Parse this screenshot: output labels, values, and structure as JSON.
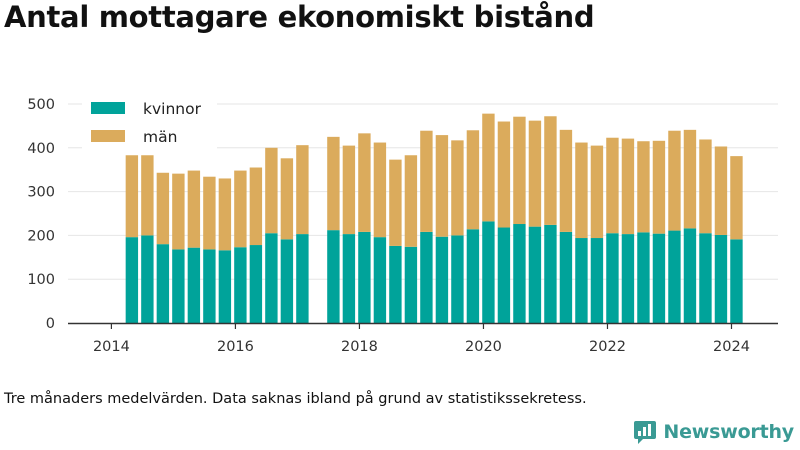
{
  "title": "Antal mottagare ekonomiskt bistånd",
  "note": "Tre månaders medelvärden. Data saknas ibland på grund av statistikssekretess.",
  "brand": "Newsworthy",
  "colors": {
    "kvinnor": "#00a39a",
    "man": "#dbab5c",
    "axis": "#333333",
    "grid": "#e6e6e6",
    "brand": "#3a9a94"
  },
  "chart_data": {
    "type": "bar",
    "stacked": true,
    "legend_position": "top-left",
    "grid": true,
    "ylim": [
      0,
      500
    ],
    "yticks": [
      0,
      100,
      200,
      300,
      400,
      500
    ],
    "xticks": [
      "2014",
      "2016",
      "2018",
      "2020",
      "2022",
      "2024"
    ],
    "xlim": [
      2013.3,
      2024.75
    ],
    "series": [
      {
        "name": "kvinnor",
        "values": [
          196,
          200,
          180,
          168,
          172,
          168,
          166,
          173,
          178,
          205,
          191,
          203,
          212,
          203,
          208,
          196,
          176,
          174,
          208,
          197,
          200,
          214,
          232,
          218,
          226,
          220,
          224,
          208,
          194,
          194,
          205,
          203,
          207,
          204,
          211,
          216,
          205,
          201,
          191
        ]
      },
      {
        "name": "män",
        "values": [
          187,
          183,
          163,
          173,
          176,
          166,
          164,
          175,
          177,
          195,
          185,
          203,
          213,
          202,
          225,
          216,
          197,
          209,
          231,
          232,
          217,
          226,
          246,
          242,
          245,
          242,
          248,
          233,
          218,
          211,
          218,
          218,
          208,
          212,
          228,
          225,
          214,
          202,
          190
        ]
      }
    ],
    "x": [
      2014.33,
      2014.58,
      2014.83,
      2015.08,
      2015.33,
      2015.58,
      2015.83,
      2016.08,
      2016.33,
      2016.58,
      2016.83,
      2017.08,
      2017.58,
      2017.83,
      2018.08,
      2018.33,
      2018.58,
      2018.83,
      2019.08,
      2019.33,
      2019.58,
      2019.83,
      2020.08,
      2020.33,
      2020.58,
      2020.83,
      2021.08,
      2021.33,
      2021.58,
      2021.83,
      2022.08,
      2022.33,
      2022.58,
      2022.83,
      2023.08,
      2023.33,
      2023.58,
      2023.83,
      2024.08
    ]
  }
}
